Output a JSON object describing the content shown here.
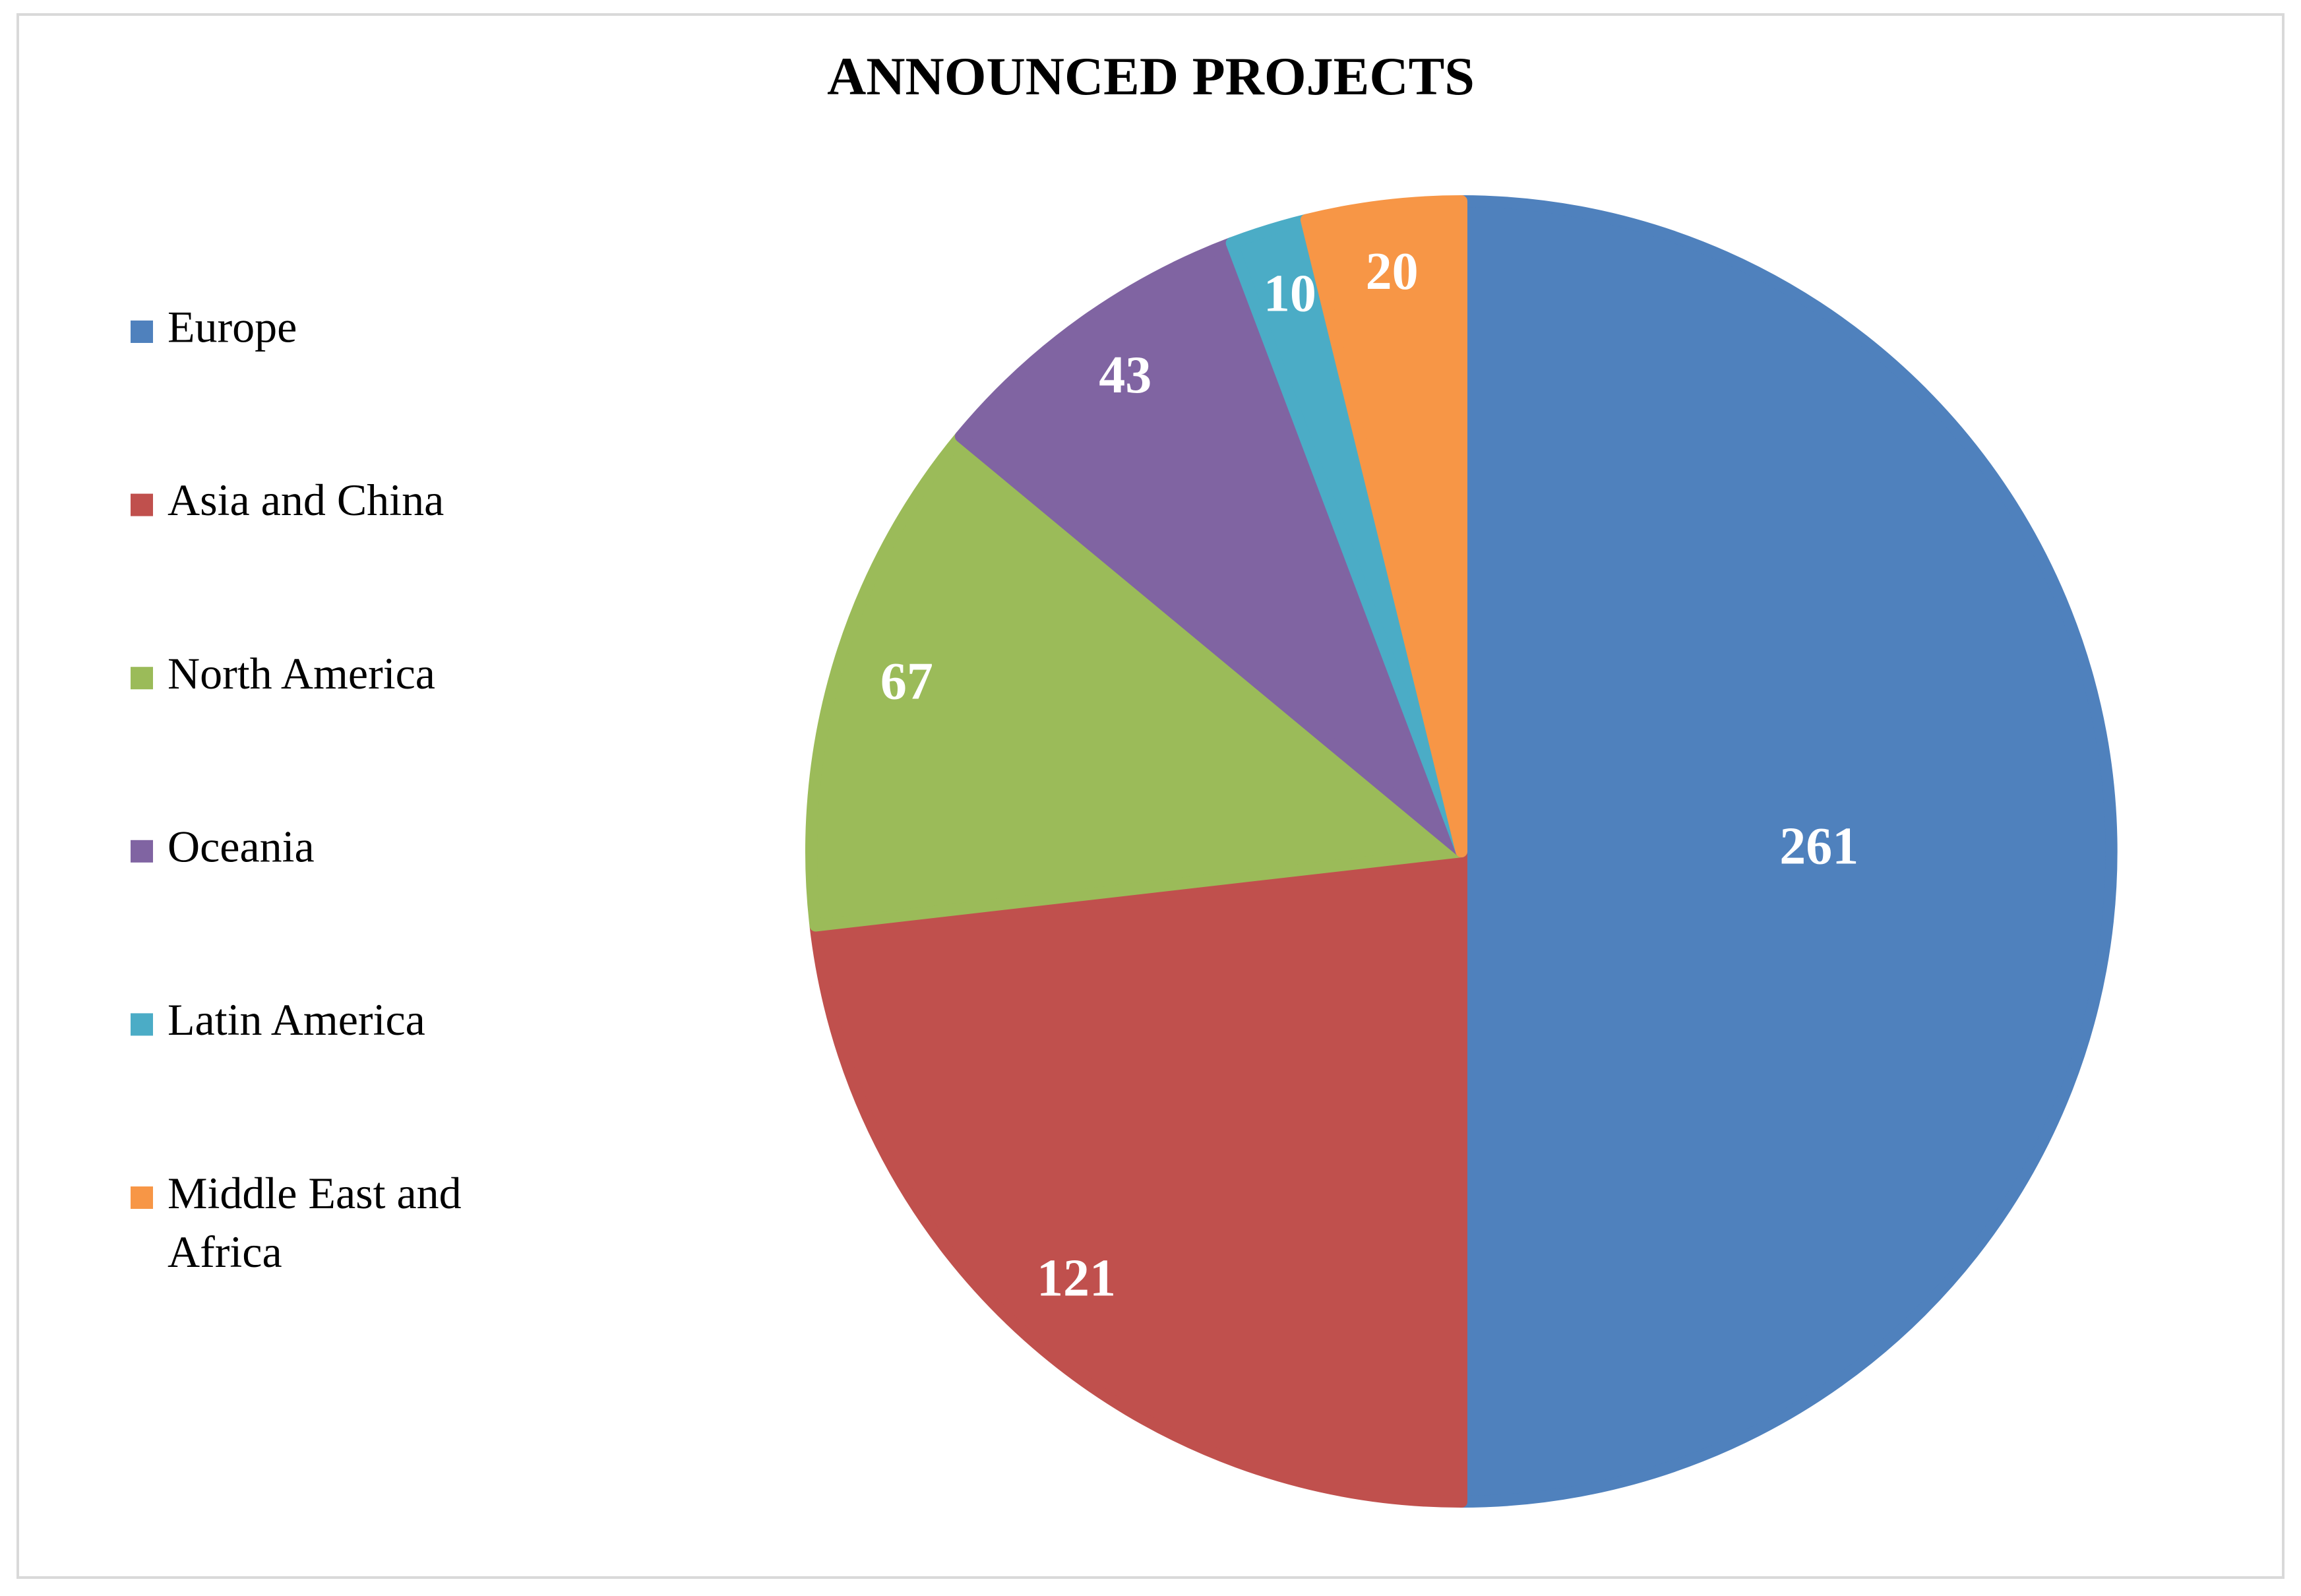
{
  "chart_data": {
    "type": "pie",
    "title": "ANNOUNCED PROJECTS",
    "categories": [
      "Europe",
      "Asia and China",
      "North America",
      "Oceania",
      "Latin America",
      "Middle East and Africa"
    ],
    "values": [
      261,
      121,
      67,
      43,
      10,
      20
    ],
    "colors": [
      "#4f81bd",
      "#c0504d",
      "#9bbb59",
      "#8064a2",
      "#4bacc6",
      "#f79646"
    ],
    "legend": "left"
  }
}
